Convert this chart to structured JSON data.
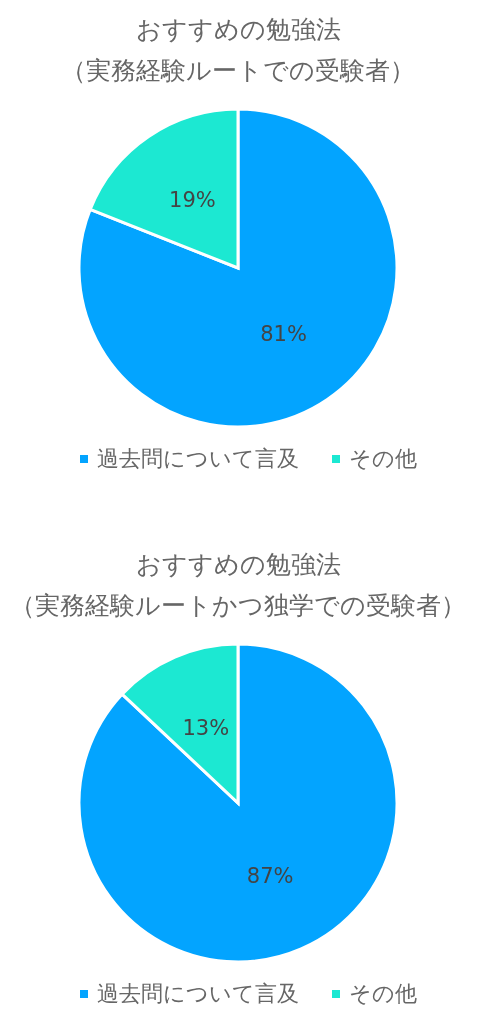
{
  "chart_data": [
    {
      "type": "pie",
      "title": "おすすめの勉強法",
      "subtitle": "（実務経験ルートでの受験者）",
      "categories": [
        "過去問について言及",
        "その他"
      ],
      "values": [
        81,
        19
      ],
      "colors": [
        "#03a4ff",
        "#1ce8d2"
      ],
      "value_labels": [
        "81%",
        "19%"
      ],
      "legend": "bottom"
    },
    {
      "type": "pie",
      "title": "おすすめの勉強法",
      "subtitle": "（実務経験ルートかつ独学での受験者）",
      "categories": [
        "過去問について言及",
        "その他"
      ],
      "values": [
        87,
        13
      ],
      "colors": [
        "#03a4ff",
        "#1ce8d2"
      ],
      "value_labels": [
        "87%",
        "13%"
      ],
      "legend": "bottom"
    }
  ]
}
